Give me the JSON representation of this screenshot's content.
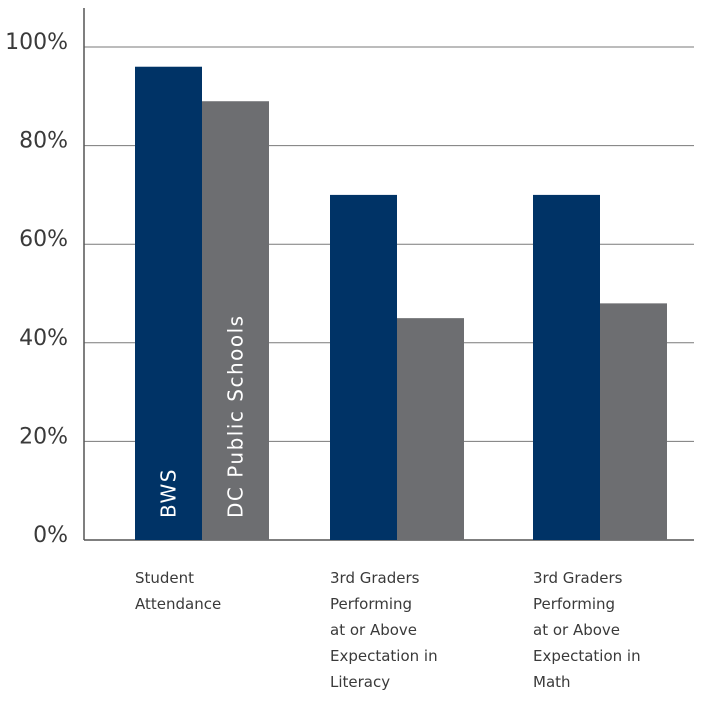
{
  "chart_data": {
    "type": "bar",
    "categories": [
      [
        "Student",
        "Attendance"
      ],
      [
        "3rd Graders",
        "Performing",
        "at or Above",
        "Expectation in",
        "Literacy"
      ],
      [
        "3rd Graders",
        "Performing",
        "at or Above",
        "Expectation in",
        "Math"
      ]
    ],
    "series": [
      {
        "name": "BWS",
        "values": [
          96,
          70,
          70
        ],
        "color": "#003366"
      },
      {
        "name": "DC Public Schools",
        "values": [
          89,
          45,
          48
        ],
        "color": "#6d6e71"
      }
    ],
    "yticks": [
      "0%",
      "20%",
      "40%",
      "60%",
      "80%",
      "100%"
    ],
    "ylim": [
      0,
      100
    ],
    "grid": true,
    "legend": "inside-first-group-bars"
  }
}
